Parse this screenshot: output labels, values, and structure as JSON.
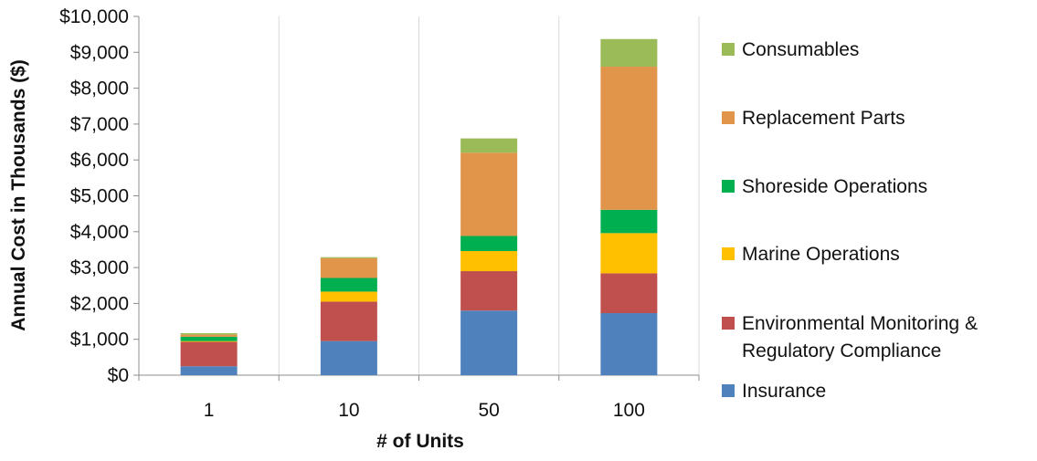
{
  "chart_data": {
    "type": "bar",
    "stacked": true,
    "xlabel": "# of Units",
    "ylabel": "Annual Cost in Thousands ($)",
    "ylim": [
      0,
      10000
    ],
    "y_ticks": [
      "$0",
      "$1,000",
      "$2,000",
      "$3,000",
      "$4,000",
      "$5,000",
      "$6,000",
      "$7,000",
      "$8,000",
      "$9,000",
      "$10,000"
    ],
    "grid": "vertical",
    "legend_position": "right",
    "categories": [
      "1",
      "10",
      "50",
      "100"
    ],
    "series": [
      {
        "name": "Insurance",
        "color": "#4f81bd",
        "values": [
          250,
          950,
          1800,
          1730
        ]
      },
      {
        "name": "Environmental Monitoring & Regulatory Compliance",
        "color": "#c0504d",
        "values": [
          680,
          1100,
          1100,
          1110
        ]
      },
      {
        "name": "Marine Operations",
        "color": "#ffc000",
        "values": [
          20,
          280,
          560,
          1120
        ]
      },
      {
        "name": "Shoreside Operations",
        "color": "#00b050",
        "values": [
          120,
          380,
          420,
          650
        ]
      },
      {
        "name": "Replacement Parts",
        "color": "#e0954a",
        "values": [
          60,
          550,
          2320,
          3990
        ]
      },
      {
        "name": "Consumables",
        "color": "#9bbb59",
        "values": [
          40,
          30,
          400,
          770
        ]
      }
    ]
  }
}
